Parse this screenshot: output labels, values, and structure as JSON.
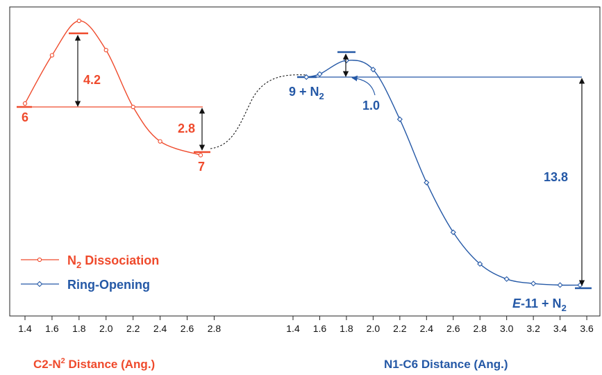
{
  "colors": {
    "red": "#ef4a2c",
    "blue": "#2458a6",
    "black": "#111111"
  },
  "chart_data": [
    {
      "type": "line",
      "xlabel_parts": [
        "C2-N",
        "2",
        " Distance (Ang.)"
      ],
      "x_ticks": [
        "1.4",
        "1.6",
        "1.8",
        "2.0",
        "2.2",
        "2.4",
        "2.6",
        "2.8"
      ],
      "xlim": [
        1.4,
        2.8
      ],
      "series": [
        {
          "legend_parts": [
            "N",
            "2",
            " Dissociation"
          ],
          "points": [
            {
              "x": 1.4,
              "y": 0.2
            },
            {
              "x": 1.6,
              "y": 3.0
            },
            {
              "x": 1.8,
              "y": 5.0
            },
            {
              "x": 2.0,
              "y": 3.3
            },
            {
              "x": 2.2,
              "y": 0.0
            },
            {
              "x": 2.4,
              "y": -2.0
            },
            {
              "x": 2.7,
              "y": -2.8
            }
          ]
        }
      ],
      "levels": {
        "reactant": {
          "label": "6",
          "x": 1.4,
          "y": 0.0
        },
        "ts": {
          "x": 1.8,
          "y": 4.2
        },
        "product": {
          "label": "7",
          "x": 2.7,
          "y": -2.8
        }
      },
      "annotations": [
        {
          "text": "4.2",
          "from": 0.0,
          "to": 4.2
        },
        {
          "text": "2.8",
          "from": -2.8,
          "to": 0.0
        }
      ]
    },
    {
      "type": "line",
      "xlabel": "N1-C6 Distance (Ang.)",
      "x_ticks": [
        "1.4",
        "1.6",
        "1.8",
        "2.0",
        "2.2",
        "2.4",
        "2.6",
        "2.8",
        "3.0",
        "3.2",
        "3.4",
        "3.6"
      ],
      "xlim": [
        1.4,
        3.6
      ],
      "series": [
        {
          "legend": "Ring-Opening",
          "points": [
            {
              "x": 1.5,
              "y": 0.0
            },
            {
              "x": 1.6,
              "y": 0.2
            },
            {
              "x": 1.8,
              "y": 1.1
            },
            {
              "x": 2.0,
              "y": 0.5
            },
            {
              "x": 2.2,
              "y": -2.8
            },
            {
              "x": 2.4,
              "y": -7.0
            },
            {
              "x": 2.6,
              "y": -10.3
            },
            {
              "x": 2.8,
              "y": -12.4
            },
            {
              "x": 3.0,
              "y": -13.4
            },
            {
              "x": 3.2,
              "y": -13.7
            },
            {
              "x": 3.4,
              "y": -13.8
            },
            {
              "x": 3.55,
              "y": -13.8
            }
          ]
        }
      ],
      "levels": {
        "reactant": {
          "label_parts": [
            "9 + N",
            "2"
          ],
          "x": 1.45,
          "y": 0.0
        },
        "ts": {
          "x": 1.8,
          "y": 1.0
        },
        "product": {
          "label_parts": [
            "E",
            "-11 + N",
            "2"
          ],
          "x": 3.55,
          "y": -13.8
        }
      },
      "annotations": [
        {
          "text": "1.0",
          "from": 0.0,
          "to": 1.0
        },
        {
          "text": "13.8",
          "from": -13.8,
          "to": 0.0
        }
      ]
    }
  ]
}
